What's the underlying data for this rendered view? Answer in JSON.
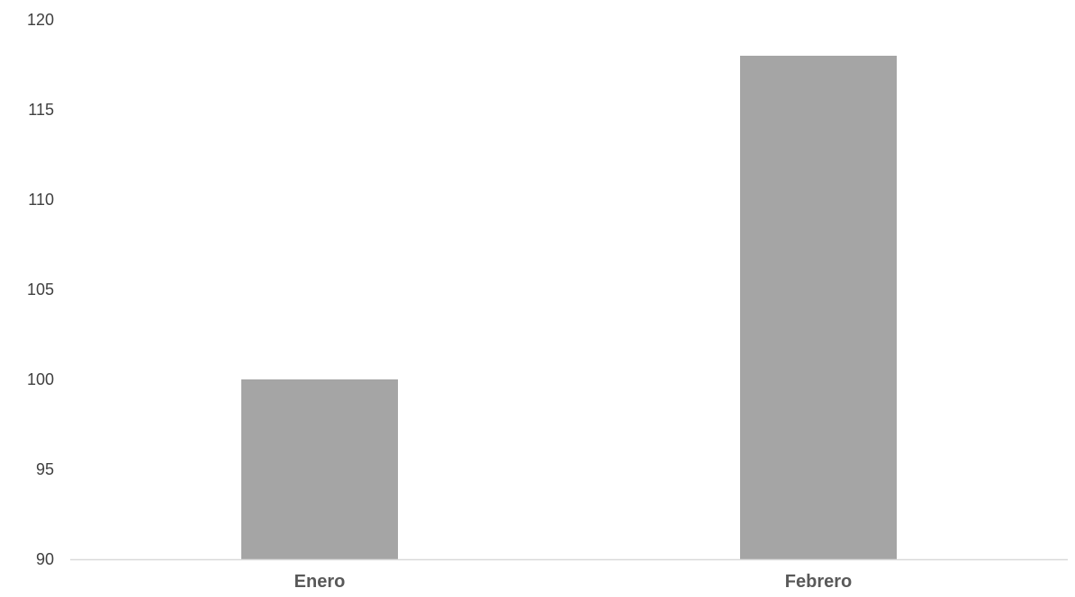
{
  "chart_data": {
    "type": "bar",
    "categories": [
      "Enero",
      "Febrero"
    ],
    "values": [
      100,
      118
    ],
    "title": "",
    "xlabel": "",
    "ylabel": "",
    "ylim": [
      90,
      120
    ],
    "yticks": [
      "90",
      "95",
      "100",
      "105",
      "110",
      "115",
      "120"
    ],
    "grid": false,
    "legend": "none",
    "colors": {
      "bar": "#a5a5a5",
      "axis": "#d9d9d9"
    }
  }
}
